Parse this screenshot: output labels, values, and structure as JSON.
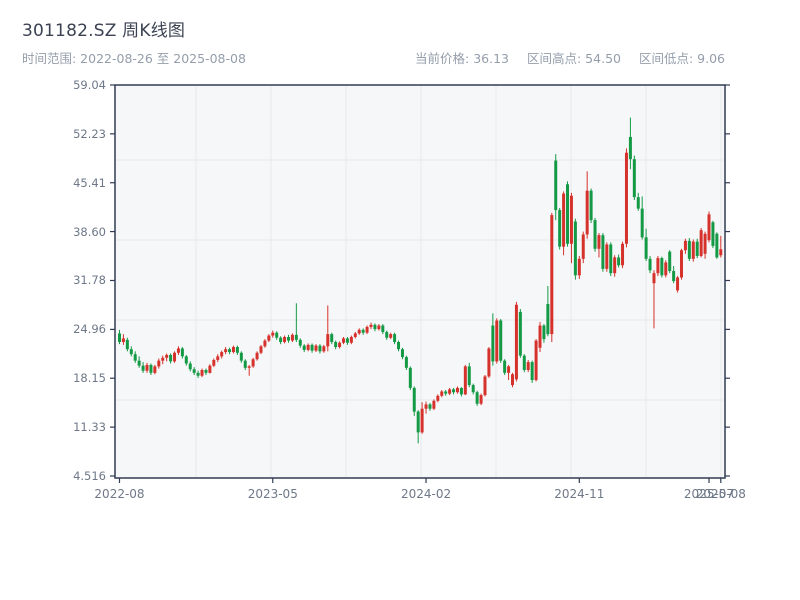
{
  "header": {
    "title": "301182.SZ 周K线图",
    "subtitle": "时间范围: 2022-08-26 至 2025-08-08",
    "stats_display": [
      "当前价格: 36.13",
      "区间高点: 54.50",
      "区间低点: 9.06"
    ]
  },
  "chart_data": {
    "type": "candlestick",
    "symbol": "301182.SZ",
    "period": "weekly",
    "title": "301182.SZ 周K线图",
    "date_range": [
      "2022-08-26",
      "2025-08-08"
    ],
    "current_price": 36.13,
    "range_high": 54.5,
    "range_low": 9.06,
    "grid": true,
    "y_tick_labels": [
      "59.04",
      "52.23",
      "45.41",
      "38.60",
      "31.78",
      "24.96",
      "18.15",
      "11.33",
      "4.516"
    ],
    "x_ticks": [
      {
        "label": "2022-08",
        "index": 0
      },
      {
        "label": "2023-05",
        "index": 39
      },
      {
        "label": "2024-02",
        "index": 78
      },
      {
        "label": "2024-11",
        "index": 117
      },
      {
        "label": "2025-07",
        "index": 150
      },
      {
        "label": "2025-08",
        "index": 153
      }
    ],
    "colors": {
      "up": "#d6322c",
      "down": "#149a45",
      "grid": "#e6e8ec",
      "plot_bg": "#f6f7f9",
      "axis": "#303b52",
      "tick_text": "#6e7888"
    },
    "candles_format": [
      "open",
      "high",
      "low",
      "close"
    ],
    "candles": [
      [
        24.4,
        24.9,
        22.9,
        23.2
      ],
      [
        23.2,
        24.3,
        22.8,
        23.7
      ],
      [
        23.5,
        23.8,
        21.9,
        22.2
      ],
      [
        22.2,
        22.6,
        21.2,
        21.5
      ],
      [
        21.5,
        21.9,
        20.3,
        20.6
      ],
      [
        20.6,
        21.2,
        19.6,
        19.9
      ],
      [
        19.9,
        20.4,
        18.9,
        19.2
      ],
      [
        19.2,
        20.3,
        18.9,
        20.0
      ],
      [
        20.0,
        20.2,
        18.6,
        18.9
      ],
      [
        18.9,
        20.0,
        18.7,
        19.8
      ],
      [
        19.8,
        20.9,
        19.5,
        20.6
      ],
      [
        20.6,
        21.3,
        20.1,
        21.0
      ],
      [
        21.0,
        21.6,
        20.5,
        21.4
      ],
      [
        21.4,
        21.6,
        20.2,
        20.5
      ],
      [
        20.5,
        21.9,
        20.3,
        21.7
      ],
      [
        21.7,
        22.6,
        21.4,
        22.3
      ],
      [
        22.3,
        22.5,
        20.9,
        21.2
      ],
      [
        21.2,
        21.4,
        19.9,
        20.2
      ],
      [
        20.2,
        20.5,
        19.1,
        19.4
      ],
      [
        19.4,
        19.7,
        18.6,
        18.9
      ],
      [
        18.9,
        19.2,
        18.2,
        18.5
      ],
      [
        18.5,
        19.5,
        18.3,
        19.3
      ],
      [
        19.3,
        19.5,
        18.6,
        18.9
      ],
      [
        18.9,
        20.1,
        18.8,
        19.9
      ],
      [
        19.9,
        20.9,
        19.7,
        20.7
      ],
      [
        20.7,
        21.5,
        20.4,
        21.2
      ],
      [
        21.2,
        22.0,
        20.9,
        21.8
      ],
      [
        21.8,
        22.5,
        21.5,
        22.2
      ],
      [
        22.2,
        22.4,
        21.5,
        21.8
      ],
      [
        21.8,
        22.7,
        21.6,
        22.5
      ],
      [
        22.5,
        22.7,
        21.4,
        21.7
      ],
      [
        21.7,
        21.9,
        20.3,
        20.6
      ],
      [
        20.6,
        20.8,
        19.3,
        19.6
      ],
      [
        19.6,
        20.0,
        18.5,
        19.8
      ],
      [
        19.8,
        21.0,
        19.6,
        20.8
      ],
      [
        20.8,
        21.9,
        20.6,
        21.7
      ],
      [
        21.7,
        22.8,
        21.5,
        22.6
      ],
      [
        22.6,
        23.6,
        22.4,
        23.4
      ],
      [
        23.4,
        24.3,
        23.2,
        24.1
      ],
      [
        24.1,
        24.8,
        23.8,
        24.5
      ],
      [
        24.5,
        24.7,
        23.5,
        23.8
      ],
      [
        23.8,
        24.0,
        22.9,
        23.2
      ],
      [
        23.2,
        24.1,
        23.0,
        23.9
      ],
      [
        23.9,
        24.2,
        23.1,
        23.4
      ],
      [
        23.4,
        24.4,
        23.2,
        24.2
      ],
      [
        24.2,
        28.6,
        23.2,
        23.5
      ],
      [
        23.5,
        23.7,
        22.4,
        22.7
      ],
      [
        22.7,
        22.9,
        21.8,
        22.1
      ],
      [
        22.1,
        23.0,
        21.9,
        22.8
      ],
      [
        22.8,
        23.0,
        21.7,
        22.0
      ],
      [
        22.0,
        22.9,
        21.8,
        22.7
      ],
      [
        22.7,
        22.9,
        21.6,
        21.9
      ],
      [
        21.9,
        22.8,
        21.7,
        22.6
      ],
      [
        22.6,
        28.3,
        21.9,
        24.3
      ],
      [
        24.3,
        24.5,
        22.9,
        23.2
      ],
      [
        23.2,
        23.4,
        22.2,
        22.5
      ],
      [
        22.5,
        23.3,
        22.3,
        23.1
      ],
      [
        23.1,
        23.9,
        22.9,
        23.7
      ],
      [
        23.7,
        23.9,
        22.8,
        23.1
      ],
      [
        23.1,
        24.1,
        22.9,
        23.9
      ],
      [
        23.9,
        24.6,
        23.7,
        24.4
      ],
      [
        24.4,
        25.1,
        24.2,
        24.9
      ],
      [
        24.9,
        25.1,
        24.2,
        24.5
      ],
      [
        24.5,
        25.5,
        24.3,
        25.3
      ],
      [
        25.3,
        25.9,
        25.0,
        25.6
      ],
      [
        25.6,
        25.8,
        24.7,
        25.0
      ],
      [
        25.0,
        25.7,
        24.8,
        25.5
      ],
      [
        25.5,
        25.7,
        24.3,
        24.6
      ],
      [
        24.6,
        24.8,
        23.5,
        23.8
      ],
      [
        23.8,
        24.5,
        23.6,
        24.3
      ],
      [
        24.3,
        24.5,
        22.9,
        23.2
      ],
      [
        23.2,
        23.4,
        21.9,
        22.2
      ],
      [
        22.2,
        22.4,
        20.8,
        21.1
      ],
      [
        21.1,
        21.3,
        19.3,
        19.6
      ],
      [
        19.6,
        19.8,
        16.5,
        16.8
      ],
      [
        16.8,
        17.0,
        12.9,
        13.5
      ],
      [
        13.5,
        13.7,
        9.06,
        10.6
      ],
      [
        10.6,
        14.8,
        10.4,
        13.9
      ],
      [
        13.9,
        14.9,
        13.2,
        14.5
      ],
      [
        14.5,
        14.7,
        13.6,
        13.9
      ],
      [
        13.9,
        15.2,
        13.7,
        15.0
      ],
      [
        15.0,
        15.9,
        14.8,
        15.7
      ],
      [
        15.7,
        16.5,
        15.5,
        16.3
      ],
      [
        16.3,
        16.5,
        15.7,
        16.0
      ],
      [
        16.0,
        16.8,
        15.8,
        16.6
      ],
      [
        16.6,
        16.8,
        15.9,
        16.2
      ],
      [
        16.2,
        17.0,
        16.0,
        16.8
      ],
      [
        16.8,
        16.9,
        15.6,
        15.9
      ],
      [
        15.9,
        20.0,
        15.8,
        19.8
      ],
      [
        19.8,
        20.3,
        16.9,
        17.2
      ],
      [
        17.2,
        17.4,
        15.9,
        16.2
      ],
      [
        16.2,
        16.4,
        14.3,
        14.6
      ],
      [
        14.6,
        16.0,
        14.4,
        15.8
      ],
      [
        15.8,
        18.6,
        15.6,
        18.4
      ],
      [
        18.4,
        22.5,
        18.2,
        22.3
      ],
      [
        25.5,
        27.2,
        19.9,
        20.5
      ],
      [
        20.5,
        26.5,
        20.2,
        26.2
      ],
      [
        26.2,
        26.4,
        20.3,
        20.6
      ],
      [
        20.6,
        20.8,
        18.6,
        18.9
      ],
      [
        18.9,
        20.0,
        17.9,
        19.8
      ],
      [
        17.2,
        18.9,
        16.9,
        18.7
      ],
      [
        18.0,
        28.8,
        17.7,
        28.4
      ],
      [
        27.4,
        27.8,
        21.0,
        21.3
      ],
      [
        21.3,
        21.5,
        19.0,
        19.3
      ],
      [
        19.3,
        20.7,
        19.0,
        20.4
      ],
      [
        20.4,
        20.6,
        17.5,
        17.9
      ],
      [
        17.9,
        23.6,
        17.7,
        23.4
      ],
      [
        22.4,
        26.0,
        21.8,
        25.5
      ],
      [
        25.5,
        25.7,
        23.1,
        23.6
      ],
      [
        28.5,
        31.0,
        24.0,
        24.3
      ],
      [
        24.3,
        41.2,
        23.2,
        40.9
      ],
      [
        48.5,
        49.4,
        40.2,
        41.6
      ],
      [
        41.6,
        41.9,
        36.1,
        36.5
      ],
      [
        36.5,
        44.2,
        35.3,
        43.9
      ],
      [
        45.2,
        45.6,
        36.5,
        36.9
      ],
      [
        36.9,
        44.0,
        34.2,
        43.6
      ],
      [
        40.0,
        40.4,
        31.9,
        32.5
      ],
      [
        32.5,
        35.2,
        32.0,
        34.8
      ],
      [
        34.8,
        38.6,
        34.2,
        38.2
      ],
      [
        38.2,
        47.0,
        37.6,
        44.3
      ],
      [
        44.3,
        44.6,
        39.8,
        40.2
      ],
      [
        40.2,
        40.5,
        35.8,
        36.2
      ],
      [
        36.2,
        38.4,
        35.0,
        38.1
      ],
      [
        38.1,
        38.4,
        33.0,
        33.4
      ],
      [
        33.4,
        37.1,
        33.0,
        36.8
      ],
      [
        36.8,
        37.1,
        32.4,
        32.8
      ],
      [
        32.8,
        35.3,
        32.3,
        35.0
      ],
      [
        35.0,
        35.4,
        33.6,
        33.9
      ],
      [
        33.9,
        37.2,
        33.5,
        36.9
      ],
      [
        36.9,
        50.2,
        36.4,
        49.6
      ],
      [
        51.8,
        54.5,
        47.3,
        48.7
      ],
      [
        48.7,
        49.2,
        43.0,
        43.4
      ],
      [
        43.4,
        44.0,
        41.5,
        41.8
      ],
      [
        41.8,
        43.5,
        37.5,
        37.8
      ],
      [
        37.8,
        39.0,
        34.5,
        34.8
      ],
      [
        34.8,
        35.2,
        32.8,
        33.2
      ],
      [
        31.4,
        33.2,
        25.1,
        32.8
      ],
      [
        32.8,
        35.2,
        32.4,
        34.9
      ],
      [
        34.9,
        35.1,
        32.2,
        32.5
      ],
      [
        32.5,
        34.6,
        32.2,
        34.3
      ],
      [
        35.8,
        36.0,
        32.8,
        33.1
      ],
      [
        33.1,
        33.8,
        31.4,
        31.7
      ],
      [
        30.4,
        32.4,
        30.1,
        32.2
      ],
      [
        32.2,
        36.2,
        31.9,
        36.0
      ],
      [
        36.0,
        37.6,
        35.5,
        37.3
      ],
      [
        37.3,
        37.7,
        34.5,
        34.8
      ],
      [
        34.8,
        37.5,
        34.4,
        37.2
      ],
      [
        37.2,
        37.6,
        34.9,
        35.2
      ],
      [
        35.2,
        39.1,
        35.0,
        38.8
      ],
      [
        35.5,
        38.6,
        34.8,
        38.3
      ],
      [
        37.4,
        41.4,
        37.1,
        41.0
      ],
      [
        39.9,
        40.1,
        36.3,
        36.6
      ],
      [
        38.3,
        38.5,
        34.8,
        35.0
      ],
      [
        35.3,
        38.0,
        35.0,
        36.13
      ]
    ]
  }
}
